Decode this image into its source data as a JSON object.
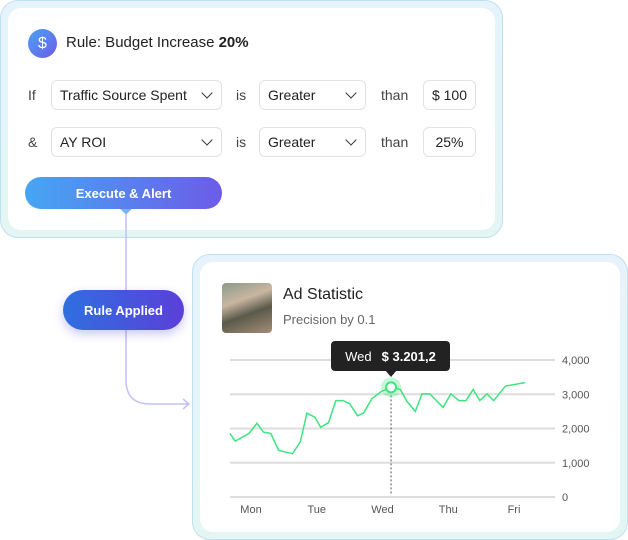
{
  "rule_card": {
    "icon": "dollar-icon",
    "title_prefix": "Rule: Budget Increase ",
    "title_value": "20%",
    "conditions": [
      {
        "connector": "If",
        "field": "Traffic Source Spent",
        "is": "is",
        "operator": "Greater",
        "than": "than",
        "value": "$ 100"
      },
      {
        "connector": "&",
        "field": "AY ROI",
        "is": "is",
        "operator": "Greater",
        "than": "than",
        "value": "25%"
      }
    ],
    "execute_label": "Execute & Alert"
  },
  "rule_applied_label": "Rule Applied",
  "stat_card": {
    "title": "Ad Statistic",
    "subtitle": "Precision by 0.1",
    "tooltip": {
      "day": "Wed",
      "value": "$ 3.201,2"
    }
  },
  "colors": {
    "line": "#3ee47f",
    "accent_start": "#45a6f3",
    "accent_end": "#6c5ce7"
  },
  "chart_data": {
    "type": "line",
    "x_ticks": [
      "Mon",
      "Tue",
      "Wed",
      "Thu",
      "Fri"
    ],
    "y_ticks": [
      "0",
      "1,000",
      "2,000",
      "3,000",
      "4,000"
    ],
    "ylim": [
      0,
      4000
    ],
    "grid": true,
    "highlight": {
      "x": 2.13,
      "y": 3201.2
    },
    "series": [
      {
        "x": [
          -0.32,
          -0.24,
          -0.03,
          0.09,
          0.19,
          0.3,
          0.42,
          0.63,
          0.75,
          0.85,
          0.97,
          1.06,
          1.18,
          1.29,
          1.4,
          1.5,
          1.62,
          1.71,
          1.84,
          1.99,
          2.13,
          2.27,
          2.37,
          2.5,
          2.6,
          2.72,
          2.92,
          3.04,
          3.16,
          3.27,
          3.38,
          3.48,
          3.59,
          3.69,
          3.87,
          4.17
        ],
        "y": [
          1857,
          1630,
          1857,
          2153,
          1896,
          1857,
          1363,
          1264,
          1610,
          2449,
          2331,
          2035,
          2173,
          2815,
          2815,
          2726,
          2370,
          2449,
          2874,
          3091,
          3201,
          3140,
          2795,
          2499,
          3012,
          3012,
          2617,
          3012,
          2815,
          2815,
          3140,
          2815,
          3012,
          2815,
          3239,
          3338
        ]
      }
    ]
  }
}
